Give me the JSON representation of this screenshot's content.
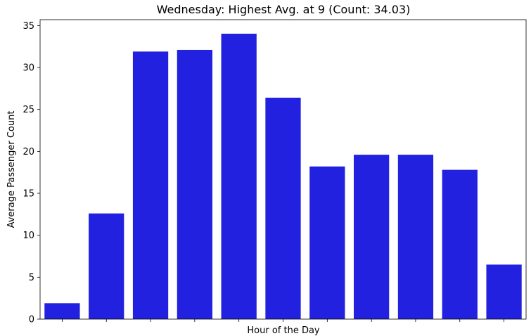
{
  "chart_data": {
    "type": "bar",
    "title": "Wednesday: Highest Avg. at 9 (Count: 34.03)",
    "xlabel": "Hour of the Day",
    "ylabel": "Average Passenger Count",
    "categories": [
      "",
      "",
      "",
      "",
      "",
      "",
      "",
      "",
      "",
      "",
      ""
    ],
    "values": [
      1.9,
      12.6,
      31.9,
      32.1,
      34.03,
      26.4,
      18.2,
      19.6,
      19.6,
      17.8,
      6.5
    ],
    "ylim": [
      0,
      35.7
    ],
    "yticks": [
      0,
      5,
      10,
      15,
      20,
      25,
      30,
      35
    ],
    "bar_color": "#2121df",
    "grid": false
  }
}
